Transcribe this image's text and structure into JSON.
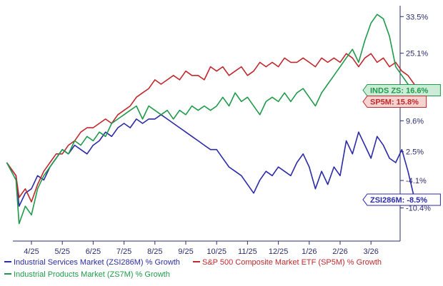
{
  "chart_data": {
    "type": "line",
    "title": "",
    "xlabel": "",
    "ylabel": "",
    "x_ticks": [
      "4/25",
      "5/25",
      "6/25",
      "7/25",
      "8/25",
      "9/25",
      "10/25",
      "11/25",
      "12/25",
      "1/26",
      "2/26",
      "3/26"
    ],
    "y_ticks": [
      33.5,
      25.1,
      16.6,
      9.6,
      2.5,
      -4.1,
      -10.4
    ],
    "y_tick_labels": [
      "33.5%",
      "25.1%",
      "16.6%",
      "9.6%",
      "2.5%",
      "-4.1%",
      "-10.4%"
    ],
    "ylim": [
      -18,
      36
    ],
    "legend_position": "bottom",
    "series": [
      {
        "name": "Industrial Services Market (ZSI286M) % Growth",
        "code": "ZSI286M",
        "color": "#2b2ba8",
        "callout": "ZSI286M: -8.5%",
        "callout_bg": "#ffffff",
        "last": -8.5,
        "points": [
          [
            3.2,
            0
          ],
          [
            3.5,
            -3
          ],
          [
            3.6,
            -10
          ],
          [
            3.8,
            -7
          ],
          [
            4.0,
            -6
          ],
          [
            4.2,
            -3
          ],
          [
            4.4,
            -4
          ],
          [
            4.6,
            -1
          ],
          [
            4.8,
            1
          ],
          [
            5.0,
            3
          ],
          [
            5.2,
            2
          ],
          [
            5.4,
            4
          ],
          [
            5.6,
            3
          ],
          [
            5.8,
            2
          ],
          [
            6.0,
            4
          ],
          [
            6.2,
            5
          ],
          [
            6.4,
            7
          ],
          [
            6.6,
            6
          ],
          [
            6.8,
            8
          ],
          [
            7.0,
            9
          ],
          [
            7.2,
            8
          ],
          [
            7.4,
            10
          ],
          [
            7.6,
            9
          ],
          [
            7.8,
            10
          ],
          [
            8.0,
            10
          ],
          [
            8.2,
            11
          ],
          [
            8.4,
            10
          ],
          [
            8.6,
            9
          ],
          [
            8.8,
            8
          ],
          [
            9.0,
            7
          ],
          [
            9.2,
            6
          ],
          [
            9.4,
            5
          ],
          [
            9.6,
            4
          ],
          [
            9.8,
            3
          ],
          [
            10.0,
            3
          ],
          [
            10.2,
            1
          ],
          [
            10.4,
            -1
          ],
          [
            10.6,
            -2
          ],
          [
            10.8,
            -3
          ],
          [
            11.0,
            -5
          ],
          [
            11.2,
            -7
          ],
          [
            11.4,
            -4
          ],
          [
            11.6,
            -2
          ],
          [
            11.8,
            -3
          ],
          [
            12.0,
            -1
          ],
          [
            12.2,
            -2
          ],
          [
            12.4,
            -3
          ],
          [
            12.6,
            0
          ],
          [
            12.8,
            2
          ],
          [
            13.0,
            -1
          ],
          [
            13.2,
            -6
          ],
          [
            13.4,
            -2
          ],
          [
            13.6,
            -5
          ],
          [
            13.8,
            -1
          ],
          [
            14.0,
            -3
          ],
          [
            14.2,
            5
          ],
          [
            14.4,
            2
          ],
          [
            14.6,
            7
          ],
          [
            14.8,
            4
          ],
          [
            15.0,
            1
          ],
          [
            15.2,
            6
          ],
          [
            15.4,
            4
          ],
          [
            15.6,
            1
          ],
          [
            15.8,
            0
          ],
          [
            16.0,
            3
          ],
          [
            16.2,
            -2
          ],
          [
            16.4,
            -8
          ],
          [
            16.6,
            -8.5
          ]
        ]
      },
      {
        "name": "S&P 500 Composite Market ETF (SP5M) % Growth",
        "code": "SP5M",
        "color": "#c0282d",
        "callout": "SP5M: 15.8%",
        "callout_bg": "#f5d3cf",
        "last": 15.8,
        "points": [
          [
            3.2,
            0
          ],
          [
            3.5,
            -3
          ],
          [
            3.6,
            -8
          ],
          [
            3.8,
            -6
          ],
          [
            4.0,
            -9
          ],
          [
            4.2,
            -5
          ],
          [
            4.4,
            -2
          ],
          [
            4.6,
            0
          ],
          [
            4.8,
            2
          ],
          [
            5.0,
            2
          ],
          [
            5.2,
            4
          ],
          [
            5.4,
            5
          ],
          [
            5.6,
            7
          ],
          [
            5.8,
            8
          ],
          [
            6.0,
            8
          ],
          [
            6.2,
            9
          ],
          [
            6.4,
            10
          ],
          [
            6.6,
            9
          ],
          [
            6.8,
            11
          ],
          [
            7.0,
            12
          ],
          [
            7.2,
            13
          ],
          [
            7.4,
            15
          ],
          [
            7.6,
            16
          ],
          [
            7.8,
            17
          ],
          [
            8.0,
            19
          ],
          [
            8.2,
            18
          ],
          [
            8.4,
            19
          ],
          [
            8.6,
            20
          ],
          [
            8.8,
            19
          ],
          [
            9.0,
            21
          ],
          [
            9.2,
            20
          ],
          [
            9.4,
            20
          ],
          [
            9.6,
            19
          ],
          [
            9.8,
            22
          ],
          [
            10.0,
            21
          ],
          [
            10.2,
            22
          ],
          [
            10.4,
            20
          ],
          [
            10.6,
            21
          ],
          [
            10.8,
            22
          ],
          [
            11.0,
            20
          ],
          [
            11.2,
            21
          ],
          [
            11.4,
            23
          ],
          [
            11.6,
            22
          ],
          [
            11.8,
            23
          ],
          [
            12.0,
            22
          ],
          [
            12.2,
            24
          ],
          [
            12.4,
            23
          ],
          [
            12.6,
            23
          ],
          [
            12.8,
            24
          ],
          [
            13.0,
            23
          ],
          [
            13.2,
            22
          ],
          [
            13.4,
            24
          ],
          [
            13.6,
            23
          ],
          [
            13.8,
            24
          ],
          [
            14.0,
            23
          ],
          [
            14.2,
            25
          ],
          [
            14.4,
            24
          ],
          [
            14.6,
            22
          ],
          [
            14.8,
            24
          ],
          [
            15.0,
            25
          ],
          [
            15.2,
            23
          ],
          [
            15.4,
            24
          ],
          [
            15.6,
            22
          ],
          [
            15.8,
            23
          ],
          [
            16.0,
            21
          ],
          [
            16.2,
            20
          ],
          [
            16.4,
            18
          ],
          [
            16.6,
            15.8
          ]
        ]
      },
      {
        "name": "Industrial Products Market (ZS7M) % Growth",
        "code": "ZS7M",
        "color": "#1f9a4a",
        "callout": "INDS ZS: 16.6%",
        "callout_bg": "#ccecd7",
        "last": 16.6,
        "points": [
          [
            3.2,
            0
          ],
          [
            3.5,
            -4
          ],
          [
            3.6,
            -14
          ],
          [
            3.8,
            -10
          ],
          [
            4.0,
            -12
          ],
          [
            4.2,
            -6
          ],
          [
            4.4,
            -3
          ],
          [
            4.6,
            -1
          ],
          [
            4.8,
            1
          ],
          [
            5.0,
            3
          ],
          [
            5.2,
            2
          ],
          [
            5.4,
            5
          ],
          [
            5.6,
            4
          ],
          [
            5.8,
            6
          ],
          [
            6.0,
            5
          ],
          [
            6.2,
            7
          ],
          [
            6.4,
            6
          ],
          [
            6.6,
            9
          ],
          [
            6.8,
            10
          ],
          [
            7.0,
            11
          ],
          [
            7.2,
            12
          ],
          [
            7.4,
            13
          ],
          [
            7.6,
            10
          ],
          [
            7.8,
            13
          ],
          [
            8.0,
            12
          ],
          [
            8.2,
            11
          ],
          [
            8.4,
            12
          ],
          [
            8.6,
            10
          ],
          [
            8.8,
            12
          ],
          [
            9.0,
            11
          ],
          [
            9.2,
            13
          ],
          [
            9.4,
            12
          ],
          [
            9.6,
            13
          ],
          [
            9.8,
            12
          ],
          [
            10.0,
            13
          ],
          [
            10.2,
            15
          ],
          [
            10.4,
            13
          ],
          [
            10.6,
            16
          ],
          [
            10.8,
            14
          ],
          [
            11.0,
            15
          ],
          [
            11.2,
            13
          ],
          [
            11.4,
            11
          ],
          [
            11.6,
            14
          ],
          [
            11.8,
            15
          ],
          [
            12.0,
            14
          ],
          [
            12.2,
            16
          ],
          [
            12.4,
            14
          ],
          [
            12.6,
            16
          ],
          [
            12.8,
            17
          ],
          [
            13.0,
            15
          ],
          [
            13.2,
            13
          ],
          [
            13.4,
            16
          ],
          [
            13.6,
            18
          ],
          [
            13.8,
            20
          ],
          [
            14.0,
            22
          ],
          [
            14.2,
            24
          ],
          [
            14.4,
            26
          ],
          [
            14.6,
            23
          ],
          [
            14.8,
            28
          ],
          [
            15.0,
            32
          ],
          [
            15.2,
            34
          ],
          [
            15.4,
            33
          ],
          [
            15.6,
            29
          ],
          [
            15.8,
            22
          ],
          [
            16.0,
            20
          ],
          [
            16.2,
            18
          ],
          [
            16.4,
            17
          ],
          [
            16.6,
            16.6
          ]
        ]
      }
    ],
    "legend": [
      {
        "label": "Industrial Services Market (ZSI286M) % Growth",
        "color": "#2b2ba8"
      },
      {
        "label": "S&P 500 Composite Market ETF (SP5M) % Growth",
        "color": "#c0282d"
      },
      {
        "label": "Industrial Products Market (ZS7M) % Growth",
        "color": "#1f9a4a"
      }
    ]
  },
  "colors": {
    "axis": "#2c2c6e",
    "tick_text": "#2c2c6e",
    "background": "#ffffff"
  }
}
